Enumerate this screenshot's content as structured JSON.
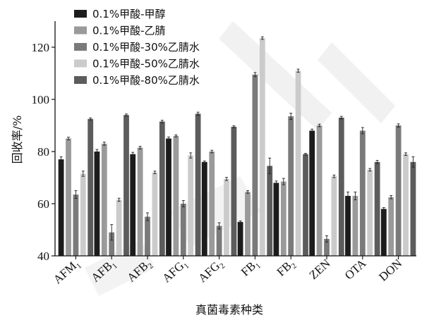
{
  "chart_data": {
    "type": "bar",
    "categories": [
      "AFM1",
      "AFB1",
      "AFB2",
      "AFG1",
      "AFG2",
      "FB1",
      "FB2",
      "ZEN",
      "OTA",
      "DON"
    ],
    "category_labels": [
      {
        "base": "AFM",
        "sub": "1"
      },
      {
        "base": "AFB",
        "sub": "1"
      },
      {
        "base": "AFB",
        "sub": "2"
      },
      {
        "base": "AFG",
        "sub": "1"
      },
      {
        "base": "AFG",
        "sub": "2"
      },
      {
        "base": "FB",
        "sub": "1"
      },
      {
        "base": "FB",
        "sub": "2"
      },
      {
        "base": "ZEN",
        "sub": ""
      },
      {
        "base": "OTA",
        "sub": ""
      },
      {
        "base": "DON",
        "sub": ""
      }
    ],
    "series": [
      {
        "name": "0.1%甲酸-甲醇",
        "color": "#1c1c1c",
        "values": [
          77,
          80,
          79,
          85,
          76,
          53,
          68,
          88,
          63,
          58
        ],
        "errors": [
          1.0,
          0.8,
          0.7,
          0.6,
          0.4,
          0.4,
          0.7,
          0.6,
          1.5,
          0.5
        ]
      },
      {
        "name": "0.1%甲酸-乙腈",
        "color": "#9a9a9a",
        "values": [
          85,
          83,
          81.5,
          86,
          80,
          64.5,
          68.5,
          90,
          63,
          62.5
        ],
        "errors": [
          0.5,
          0.6,
          0.5,
          0.4,
          0.5,
          0.5,
          1.2,
          0.5,
          1.5,
          0.6
        ]
      },
      {
        "name": "0.1%甲酸-30%乙腈水",
        "color": "#7a7a7a",
        "values": [
          63.5,
          49,
          55,
          60,
          51.5,
          109.5,
          93.5,
          46.5,
          88,
          90
        ],
        "errors": [
          1.5,
          3.0,
          1.5,
          1.2,
          1.2,
          0.8,
          1.2,
          1.2,
          1.2,
          0.6
        ]
      },
      {
        "name": "0.1%甲酸-50%乙腈水",
        "color": "#cbcbcb",
        "values": [
          71.5,
          61.5,
          72,
          78.5,
          69.5,
          123.5,
          111,
          70.5,
          73,
          79
        ],
        "errors": [
          1.0,
          0.6,
          0.5,
          1.0,
          0.6,
          0.5,
          0.6,
          0.5,
          0.5,
          0.5
        ]
      },
      {
        "name": "0.1%甲酸-80%乙腈水",
        "color": "#5c5c5c",
        "values": [
          92.5,
          94,
          91.5,
          94.5,
          89.5,
          74.5,
          79,
          93,
          76,
          76
        ],
        "errors": [
          0.4,
          0.4,
          0.5,
          0.6,
          0.4,
          3.0,
          0.3,
          0.5,
          0.6,
          2.0
        ]
      }
    ],
    "title": "",
    "xlabel": "真菌毒素种类",
    "ylabel": "回收率/%",
    "ylim": [
      40,
      130
    ],
    "yticks": [
      40,
      60,
      80,
      100,
      120
    ],
    "grid": false,
    "legend_placement": "top-left"
  }
}
